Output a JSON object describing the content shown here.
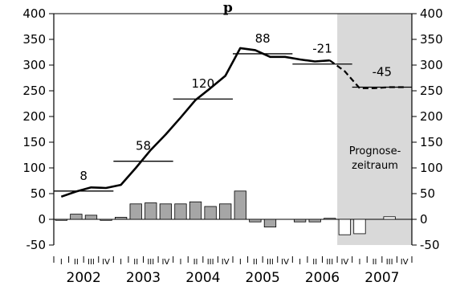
{
  "chart_data": {
    "type": "bar",
    "title": "p",
    "ylim": [
      -50,
      400
    ],
    "yticks": [
      -50,
      0,
      50,
      100,
      150,
      200,
      250,
      300,
      350,
      400
    ],
    "quarter_labels": [
      "I",
      "II",
      "III",
      "IV",
      "I",
      "II",
      "III",
      "IV",
      "I",
      "II",
      "III",
      "IV",
      "I",
      "II",
      "III",
      "IV",
      "I",
      "II",
      "III",
      "IV",
      "I",
      "II",
      "III",
      "IV"
    ],
    "years": [
      "2002",
      "2003",
      "2004",
      "2005",
      "2006",
      "2007"
    ],
    "forecast_label_line1": "Prognose-",
    "forecast_label_line2": "zeitraum",
    "forecast_start_index": 19,
    "bars": [
      -2,
      10,
      8,
      -2,
      4,
      30,
      32,
      30,
      30,
      34,
      25,
      30,
      55,
      -5,
      -15,
      0,
      -5,
      -5,
      2,
      -30,
      -28,
      0,
      5,
      0
    ],
    "bar_colors": {
      "actual": "#a6a6a6",
      "forecast": "#ffffff",
      "edge": "#000000",
      "shade": "#d9d9d9"
    },
    "line": [
      44,
      54,
      62,
      61,
      67,
      100,
      135,
      165,
      198,
      232,
      255,
      279,
      333,
      329,
      316,
      316,
      311,
      307,
      309,
      288,
      255,
      255,
      257,
      257
    ],
    "annual_averages": [
      {
        "label": "8",
        "value": 55
      },
      {
        "label": "58",
        "value": 113
      },
      {
        "label": "120",
        "value": 234
      },
      {
        "label": "88",
        "value": 322
      },
      {
        "label": "-21",
        "value": 302
      },
      {
        "label": "-45",
        "value": 257
      }
    ]
  }
}
